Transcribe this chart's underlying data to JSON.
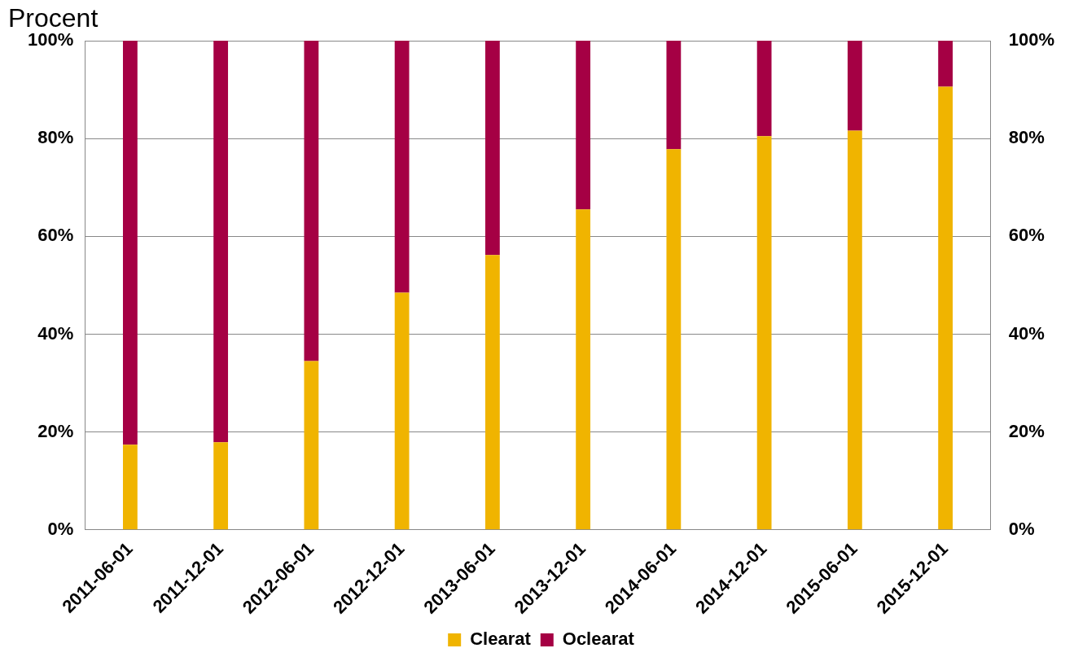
{
  "chart_data": {
    "type": "bar",
    "stacked": true,
    "ylabel": "Procent",
    "categories": [
      "2011-06-01",
      "2011-12-01",
      "2012-06-01",
      "2012-12-01",
      "2013-06-01",
      "2013-12-01",
      "2014-06-01",
      "2014-12-01",
      "2015-06-01",
      "2015-12-01"
    ],
    "series": [
      {
        "name": "Clearat",
        "color": "#f0b400",
        "values": [
          17.4,
          17.9,
          34.5,
          48.5,
          56.2,
          65.5,
          77.8,
          80.5,
          81.6,
          90.6
        ]
      },
      {
        "name": "Oclearat",
        "color": "#a50044",
        "values": [
          82.6,
          82.1,
          65.5,
          51.5,
          43.8,
          34.5,
          22.2,
          19.5,
          18.4,
          9.4
        ]
      }
    ],
    "ylim": [
      0,
      100
    ],
    "yticks": [
      {
        "value": 0,
        "label": "0%"
      },
      {
        "value": 20,
        "label": "20%"
      },
      {
        "value": 40,
        "label": "40%"
      },
      {
        "value": 60,
        "label": "60%"
      },
      {
        "value": 80,
        "label": "80%"
      },
      {
        "value": 100,
        "label": "100%"
      }
    ],
    "y2lim": [
      0,
      100
    ],
    "y2ticks": [
      {
        "value": 0,
        "label": "0%"
      },
      {
        "value": 20,
        "label": "20%"
      },
      {
        "value": 40,
        "label": "40%"
      },
      {
        "value": 60,
        "label": "60%"
      },
      {
        "value": 80,
        "label": "80%"
      },
      {
        "value": 100,
        "label": "100%"
      }
    ],
    "grid": "y",
    "legend": "bottom"
  }
}
